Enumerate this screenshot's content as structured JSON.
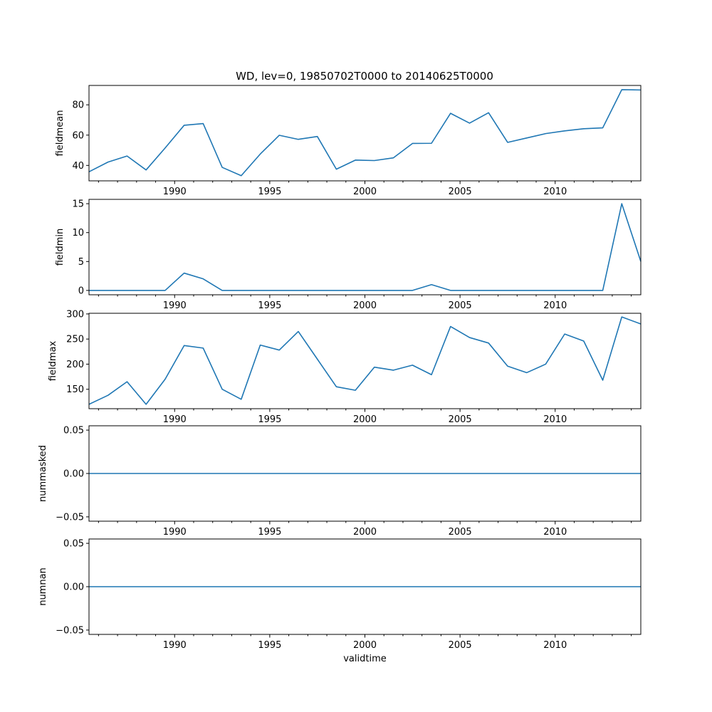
{
  "title": "WD, lev=0, 19850702T0000 to 20140625T0000",
  "colors": {
    "line": "#1f77b4",
    "axis": "#000000"
  },
  "chart_data": [
    {
      "type": "line",
      "ylabel": "fieldmean",
      "xlabel": "",
      "xlim": [
        1985.5,
        2014.5
      ],
      "ylim": [
        29.8,
        92.8
      ],
      "yticks": [
        40,
        60,
        80
      ],
      "ytick_labels": [
        "40",
        "60",
        "80"
      ],
      "xticks": [
        1990,
        1995,
        2000,
        2005,
        2010
      ],
      "xtick_labels": [
        "1990",
        "1995",
        "2000",
        "2005",
        "2010"
      ],
      "x": [
        1985.5,
        1986.5,
        1987.5,
        1988.5,
        1989.5,
        1990.5,
        1991.5,
        1992.5,
        1993.5,
        1994.5,
        1995.5,
        1996.5,
        1997.5,
        1998.5,
        1999.5,
        2000.5,
        2001.5,
        2002.5,
        2003.5,
        2004.5,
        2005.5,
        2006.5,
        2007.5,
        2008.5,
        2009.5,
        2010.5,
        2011.5,
        2012.5,
        2013.5,
        2014.5
      ],
      "values": [
        35.8,
        42.2,
        46.2,
        37.0,
        51.5,
        66.5,
        67.6,
        38.7,
        33.2,
        47.5,
        59.9,
        57.2,
        59.1,
        37.5,
        43.5,
        43.2,
        45.0,
        54.5,
        54.6,
        74.4,
        67.9,
        74.8,
        55.2,
        58.1,
        61.0,
        62.8,
        64.2,
        64.8,
        90.0,
        89.8
      ]
    },
    {
      "type": "line",
      "ylabel": "fieldmin",
      "xlabel": "",
      "xlim": [
        1985.5,
        2014.5
      ],
      "ylim": [
        -0.75,
        15.75
      ],
      "yticks": [
        0,
        5,
        10,
        15
      ],
      "ytick_labels": [
        "0",
        "5",
        "10",
        "15"
      ],
      "xticks": [
        1990,
        1995,
        2000,
        2005,
        2010
      ],
      "xtick_labels": [
        "1990",
        "1995",
        "2000",
        "2005",
        "2010"
      ],
      "x": [
        1985.5,
        1986.5,
        1987.5,
        1988.5,
        1989.5,
        1990.5,
        1991.5,
        1992.5,
        1993.5,
        1994.5,
        1995.5,
        1996.5,
        1997.5,
        1998.5,
        1999.5,
        2000.5,
        2001.5,
        2002.5,
        2003.5,
        2004.5,
        2005.5,
        2006.5,
        2007.5,
        2008.5,
        2009.5,
        2010.5,
        2011.5,
        2012.5,
        2013.5,
        2014.5
      ],
      "values": [
        0,
        0,
        0,
        0,
        0,
        3,
        2,
        0,
        0,
        0,
        0,
        0,
        0,
        0,
        0,
        0,
        0,
        0,
        1,
        0,
        0,
        0,
        0,
        0,
        0,
        0,
        0,
        0,
        15,
        5
      ]
    },
    {
      "type": "line",
      "ylabel": "fieldmax",
      "xlabel": "",
      "xlim": [
        1985.5,
        2014.5
      ],
      "ylim": [
        111.3,
        301.3
      ],
      "yticks": [
        150,
        200,
        250,
        300
      ],
      "ytick_labels": [
        "150",
        "200",
        "250",
        "300"
      ],
      "xticks": [
        1990,
        1995,
        2000,
        2005,
        2010
      ],
      "xtick_labels": [
        "1990",
        "1995",
        "2000",
        "2005",
        "2010"
      ],
      "x": [
        1985.5,
        1986.5,
        1987.5,
        1988.5,
        1989.5,
        1990.5,
        1991.5,
        1992.5,
        1993.5,
        1994.5,
        1995.5,
        1996.5,
        1997.5,
        1998.5,
        1999.5,
        2000.5,
        2001.5,
        2002.5,
        2003.5,
        2004.5,
        2005.5,
        2006.5,
        2007.5,
        2008.5,
        2009.5,
        2010.5,
        2011.5,
        2012.5,
        2013.5,
        2014.5
      ],
      "values": [
        120,
        138,
        165,
        120,
        170,
        237,
        232,
        150,
        130,
        238,
        228,
        265,
        210,
        155,
        148,
        194,
        188,
        198,
        179,
        275,
        253,
        242,
        196,
        183,
        200,
        260,
        246,
        168,
        294,
        280
      ]
    },
    {
      "type": "line",
      "ylabel": "nummasked",
      "xlabel": "",
      "xlim": [
        1985.5,
        2014.5
      ],
      "ylim": [
        -0.055,
        0.055
      ],
      "yticks": [
        -0.05,
        0.0,
        0.05
      ],
      "ytick_labels": [
        "−0.05",
        "0.00",
        "0.05"
      ],
      "xticks": [
        1990,
        1995,
        2000,
        2005,
        2010
      ],
      "xtick_labels": [
        "1990",
        "1995",
        "2000",
        "2005",
        "2010"
      ],
      "x": [
        1985.5,
        2014.5
      ],
      "values": [
        0,
        0
      ]
    },
    {
      "type": "line",
      "ylabel": "numnan",
      "xlabel": "validtime",
      "xlim": [
        1985.5,
        2014.5
      ],
      "ylim": [
        -0.055,
        0.055
      ],
      "yticks": [
        -0.05,
        0.0,
        0.05
      ],
      "ytick_labels": [
        "−0.05",
        "0.00",
        "0.05"
      ],
      "xticks": [
        1990,
        1995,
        2000,
        2005,
        2010
      ],
      "xtick_labels": [
        "1990",
        "1995",
        "2000",
        "2005",
        "2010"
      ],
      "x": [
        1985.5,
        2014.5
      ],
      "values": [
        0,
        0
      ]
    }
  ]
}
